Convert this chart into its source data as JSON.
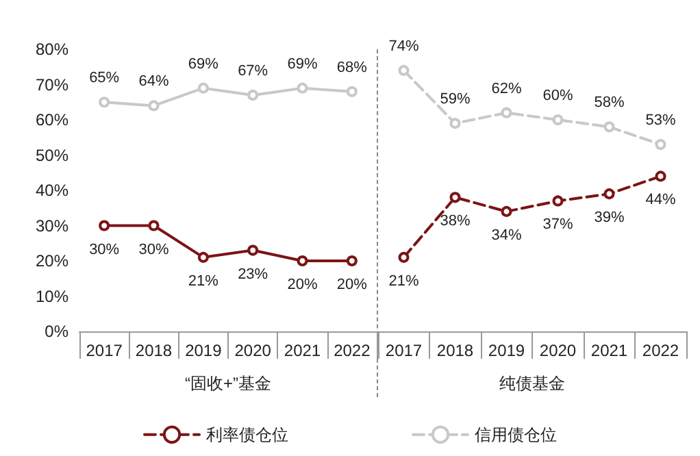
{
  "chart_data": [
    {
      "type": "line",
      "xlabel": "“固收+”基金",
      "categories": [
        "2017",
        "2018",
        "2019",
        "2020",
        "2021",
        "2022"
      ],
      "series": [
        {
          "color": "#7b1416",
          "values": [
            30,
            30,
            21,
            23,
            20,
            20
          ],
          "value_labels": [
            "30%",
            "30%",
            "21%",
            "23%",
            "20%",
            "20%"
          ]
        },
        {
          "color": "#c8c8c8",
          "values": [
            65,
            64,
            69,
            67,
            69,
            68
          ],
          "value_labels": [
            "65%",
            "64%",
            "69%",
            "67%",
            "69%",
            "68%"
          ]
        }
      ],
      "ylim": [
        0,
        80
      ],
      "yticks": [
        {
          "value": 0,
          "label": "0%"
        },
        {
          "value": 10,
          "label": "10%"
        },
        {
          "value": 20,
          "label": "20%"
        },
        {
          "value": 30,
          "label": "30%"
        },
        {
          "value": 40,
          "label": "40%"
        },
        {
          "value": 50,
          "label": "50%"
        },
        {
          "value": 60,
          "label": "60%"
        },
        {
          "value": 70,
          "label": "70%"
        },
        {
          "value": 80,
          "label": "80%"
        }
      ],
      "marker": "circle",
      "line_style": "solid",
      "legend": false
    },
    {
      "type": "line",
      "xlabel": "纯债基金",
      "categories": [
        "2017",
        "2018",
        "2019",
        "2020",
        "2021",
        "2022"
      ],
      "series": [
        {
          "name": "利率债仓位",
          "color": "#7b1416",
          "values": [
            21,
            38,
            34,
            37,
            39,
            44
          ],
          "value_labels": [
            "21%",
            "38%",
            "34%",
            "37%",
            "39%",
            "44%"
          ]
        },
        {
          "name": "信用债仓位",
          "color": "#c8c8c8",
          "values": [
            74,
            59,
            62,
            60,
            58,
            53
          ],
          "value_labels": [
            "74%",
            "59%",
            "62%",
            "60%",
            "58%",
            "53%"
          ]
        }
      ],
      "ylim": [
        0,
        80
      ],
      "marker": "circle",
      "line_style": "dashed",
      "legend": "bottom",
      "tick_labels": "x"
    }
  ]
}
